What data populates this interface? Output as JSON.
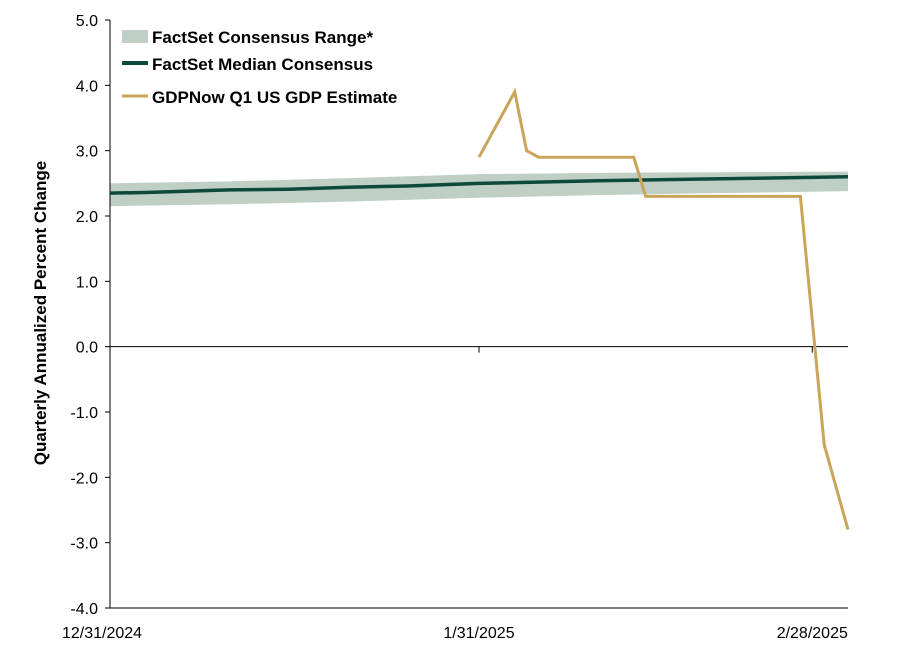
{
  "chart_data": {
    "type": "line",
    "ylabel": "Quarterly Annualized Percent Change",
    "xlabel": "",
    "ylim": [
      -4.0,
      5.0
    ],
    "y_ticks": [
      "5.0",
      "4.0",
      "3.0",
      "2.0",
      "1.0",
      "0.0",
      "-1.0",
      "-2.0",
      "-3.0",
      "-4.0"
    ],
    "x_range": [
      "2024-12-31",
      "2025-03-03"
    ],
    "x_ticks": [
      {
        "date": "2024-12-31",
        "label": "12/31/2024"
      },
      {
        "date": "2025-01-31",
        "label": "1/31/2025"
      },
      {
        "date": "2025-02-28",
        "label": "2/28/2025"
      }
    ],
    "grid": false,
    "legend_position": "top-left",
    "colors": {
      "range_band": "#bfcfc6",
      "median_line": "#0d4a3a",
      "gdpnow_line": "#c9a55a"
    },
    "series": [
      {
        "name": "FactSet Consensus Range*",
        "kind": "band",
        "x": [
          "2024-12-31",
          "2025-01-10",
          "2025-01-20",
          "2025-01-31",
          "2025-02-10",
          "2025-02-20",
          "2025-03-03"
        ],
        "low": [
          2.15,
          2.18,
          2.22,
          2.28,
          2.32,
          2.35,
          2.38
        ],
        "high": [
          2.5,
          2.53,
          2.58,
          2.64,
          2.66,
          2.67,
          2.68
        ]
      },
      {
        "name": "FactSet Median Consensus",
        "kind": "line",
        "x": [
          "2024-12-31",
          "2025-01-03",
          "2025-01-10",
          "2025-01-15",
          "2025-01-20",
          "2025-01-25",
          "2025-01-31",
          "2025-02-03",
          "2025-02-10",
          "2025-02-17",
          "2025-02-24",
          "2025-03-03"
        ],
        "values": [
          2.35,
          2.36,
          2.4,
          2.41,
          2.44,
          2.46,
          2.5,
          2.51,
          2.54,
          2.56,
          2.58,
          2.6
        ]
      },
      {
        "name": "GDPNow Q1 US GDP Estimate",
        "kind": "line",
        "x": [
          "2025-01-31",
          "2025-02-03",
          "2025-02-04",
          "2025-02-05",
          "2025-02-13",
          "2025-02-14",
          "2025-02-27",
          "2025-03-01",
          "2025-03-03"
        ],
        "values": [
          2.9,
          3.9,
          3.0,
          2.9,
          2.9,
          2.3,
          2.3,
          -1.5,
          -2.8
        ]
      }
    ]
  }
}
